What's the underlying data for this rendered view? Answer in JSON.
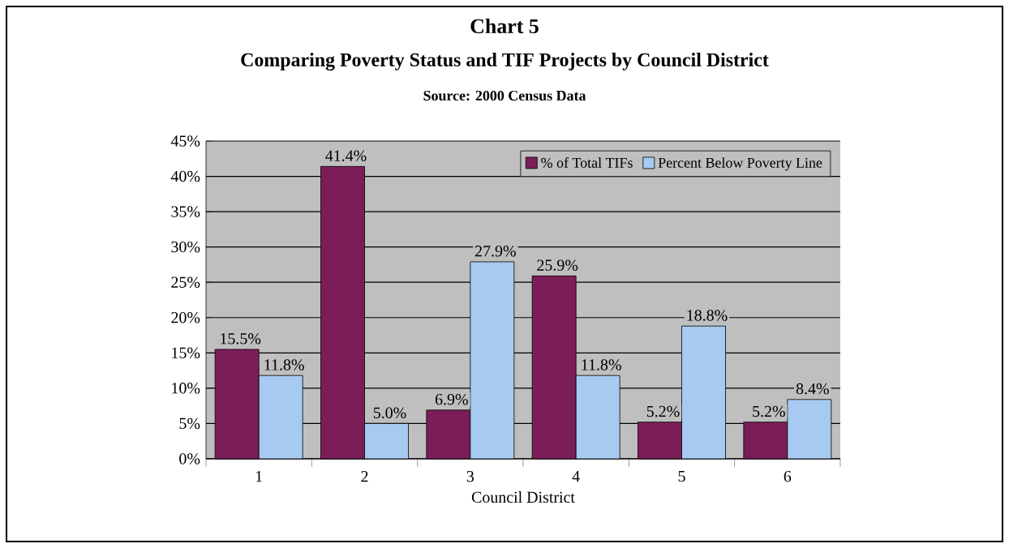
{
  "chart_data": {
    "type": "bar",
    "title": "Chart 5",
    "subtitle": "Comparing Poverty Status and TIF Projects by Council District",
    "annotations": [
      "Source: 2000 Census Data"
    ],
    "xlabel": "Council District",
    "categories": [
      "1",
      "2",
      "3",
      "4",
      "5",
      "6"
    ],
    "series": [
      {
        "name": "% of Total TIFs",
        "color": "#7b1e57",
        "values": [
          15.5,
          41.4,
          6.9,
          25.9,
          5.2,
          5.2
        ],
        "value_labels": [
          "15.5%",
          "41.4%",
          "6.9%",
          "25.9%",
          "5.2%",
          "5.2%"
        ]
      },
      {
        "name": "Percent Below Poverty Line",
        "color": "#a6caf0",
        "values": [
          11.8,
          5.0,
          27.9,
          11.8,
          18.8,
          8.4
        ],
        "value_labels": [
          "11.8%",
          "5.0%",
          "27.9%",
          "11.8%",
          "18.8%",
          "8.4%"
        ]
      }
    ],
    "ylim": [
      0,
      45
    ],
    "yticks": [
      {
        "value": 0,
        "label": "0%"
      },
      {
        "value": 5,
        "label": "5%"
      },
      {
        "value": 10,
        "label": "10%"
      },
      {
        "value": 15,
        "label": "15%"
      },
      {
        "value": 20,
        "label": "20%"
      },
      {
        "value": 25,
        "label": "25%"
      },
      {
        "value": 30,
        "label": "30%"
      },
      {
        "value": 35,
        "label": "35%"
      },
      {
        "value": 40,
        "label": "40%"
      },
      {
        "value": 45,
        "label": "45%"
      }
    ],
    "grid": "y",
    "legend": "top right"
  }
}
